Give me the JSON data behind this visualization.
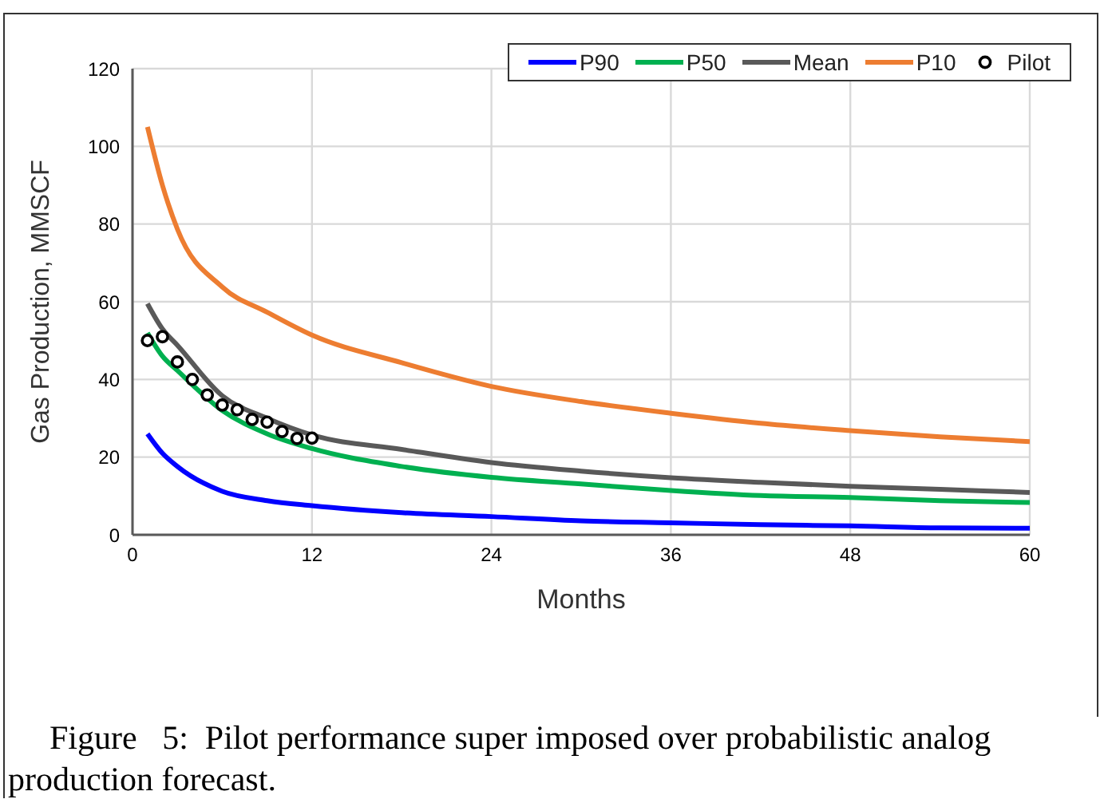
{
  "chart_data": {
    "type": "line",
    "xlabel": "Months",
    "ylabel": "Gas Production, MMSCF",
    "xlim": [
      0,
      60
    ],
    "xticks": [
      0,
      12,
      24,
      36,
      48,
      60
    ],
    "ylim": [
      0,
      120
    ],
    "yticks": [
      0,
      20,
      40,
      60,
      80,
      100,
      120
    ],
    "grid": true,
    "legend": "top right",
    "marker": "none",
    "line_style": "solid",
    "annotations": [
      "Figure   5:  Pilot performance super imposed over probabilistic analog production forecast."
    ],
    "series": [
      {
        "name": "P90",
        "color": "#0000ff",
        "x": [
          1,
          2,
          3,
          6,
          9,
          12,
          18,
          24,
          30,
          36,
          42,
          48,
          54,
          60
        ],
        "values": [
          26,
          21,
          17.6,
          11.2,
          8.8,
          7.5,
          5.7,
          4.7,
          3.6,
          3.1,
          2.6,
          2.3,
          1.8,
          1.7
        ]
      },
      {
        "name": "P50",
        "color": "#00b050",
        "x": [
          1,
          2,
          3,
          6,
          9,
          12,
          18,
          24,
          30,
          36,
          42,
          48,
          54,
          60
        ],
        "values": [
          52,
          46,
          42.3,
          32,
          26,
          22.2,
          17.6,
          14.8,
          13.1,
          11.4,
          10.1,
          9.6,
          8.8,
          8.3
        ]
      },
      {
        "name": "Mean",
        "color": "#595959",
        "x": [
          1,
          2,
          3,
          6,
          9,
          12,
          18,
          24,
          30,
          36,
          42,
          48,
          54,
          60
        ],
        "values": [
          59.5,
          53,
          48.8,
          35.8,
          30,
          25.7,
          22,
          18.6,
          16.4,
          14.7,
          13.5,
          12.5,
          11.7,
          10.9
        ]
      },
      {
        "name": "P10",
        "color": "#ed7d31",
        "x": [
          1,
          2,
          3,
          6,
          9,
          12,
          18,
          24,
          30,
          36,
          42,
          48,
          54,
          60
        ],
        "values": [
          105,
          90,
          78.7,
          63.8,
          57.3,
          51.4,
          44.3,
          38.2,
          34.3,
          31.3,
          28.7,
          26.8,
          25.2,
          24
        ]
      },
      {
        "name": "Pilot",
        "type": "scatter",
        "marker": "circle",
        "color": "#000000",
        "x": [
          1,
          2,
          3,
          4,
          5,
          6,
          7,
          8,
          9,
          10,
          11,
          12
        ],
        "values": [
          50,
          51,
          44.5,
          40,
          36,
          33.4,
          32.2,
          29.7,
          29,
          26.6,
          24.8,
          24.9
        ]
      }
    ]
  }
}
